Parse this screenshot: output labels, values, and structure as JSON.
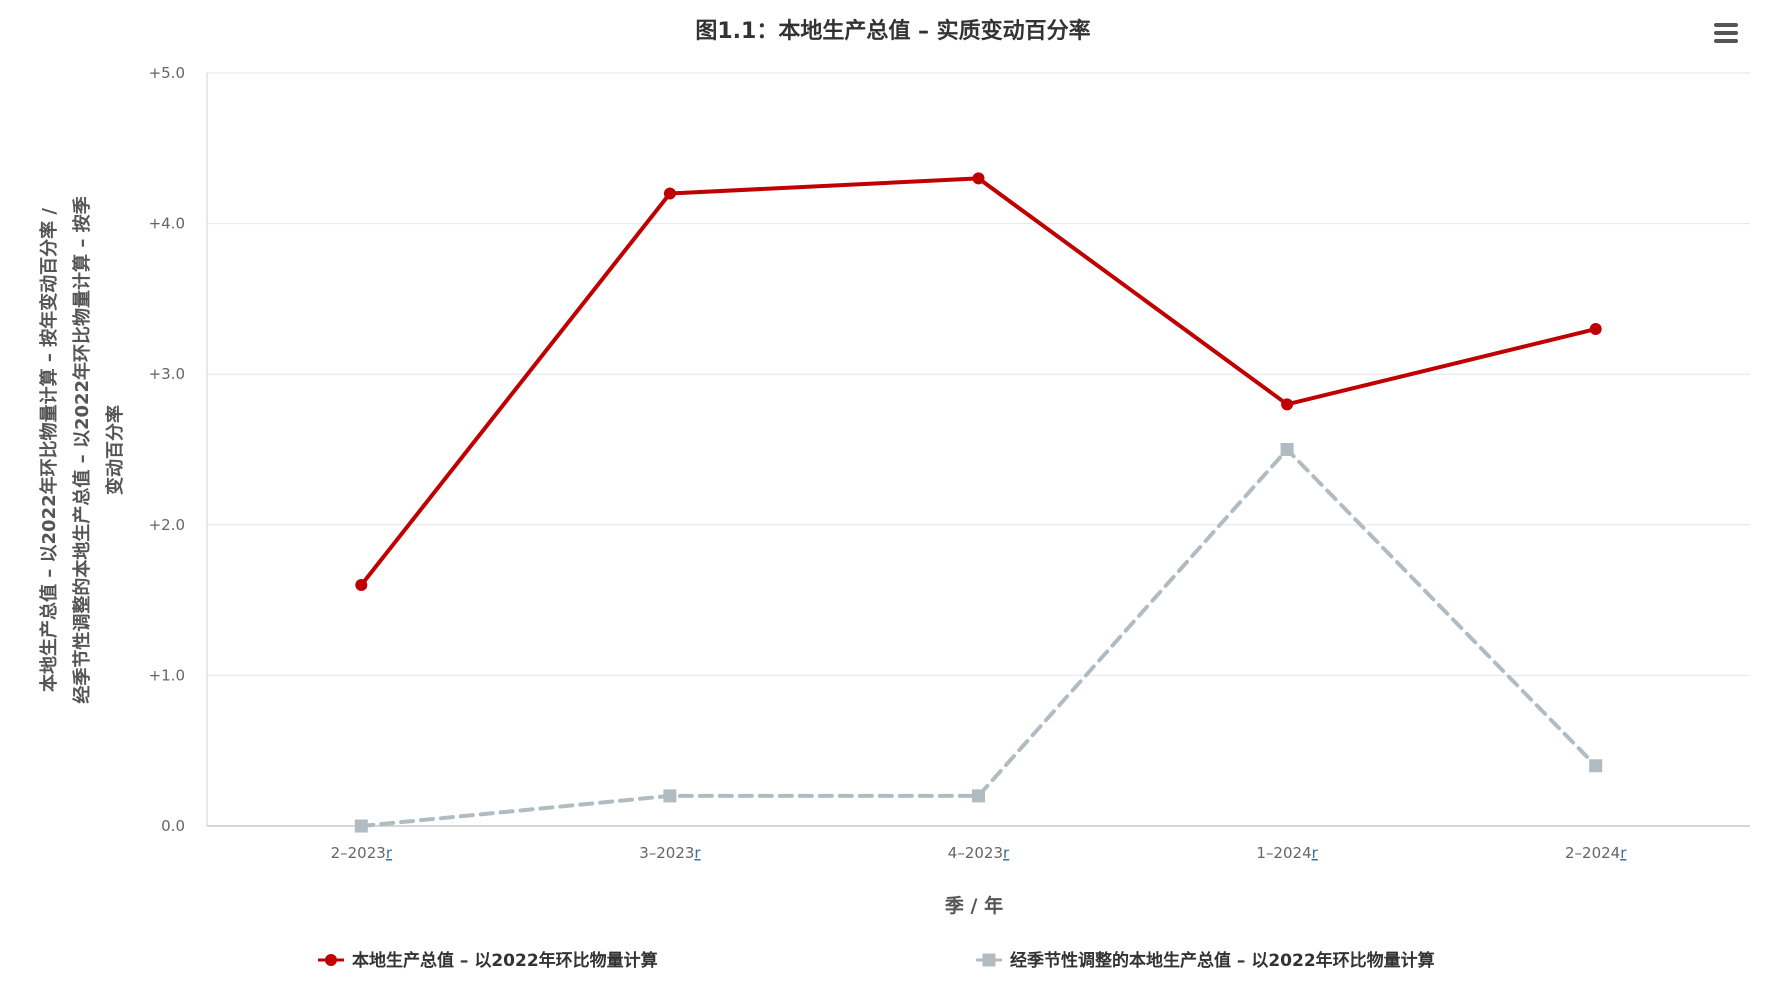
{
  "chart_data": {
    "type": "line",
    "title": "图1.1：本地生产总值 – 实质变动百分率",
    "xlabel": "季 / 年",
    "ylabel": "本地生产总值 – 以2022年环比物量计算 – 按年变动百分率 / 经季节性调整的本地生产总值 – 以2022年环比物量计算 – 按季变动百分率",
    "ylabel_lines": [
      "本地生产总值 – 以2022年环比物量计算 – 按年变动百分率 /",
      "经季节性调整的本地生产总值 – 以2022年环比物量计算 – 按季",
      "变动百分率"
    ],
    "categories": [
      "2–2023",
      "3–2023",
      "4–2023",
      "1–2024",
      "2–2024"
    ],
    "category_suffix": "r",
    "ylim": [
      0,
      5
    ],
    "yticks": [
      {
        "value": 0,
        "label": "0.0"
      },
      {
        "value": 1,
        "label": "+1.0"
      },
      {
        "value": 2,
        "label": "+2.0"
      },
      {
        "value": 3,
        "label": "+3.0"
      },
      {
        "value": 4,
        "label": "+4.0"
      },
      {
        "value": 5,
        "label": "+5.0"
      }
    ],
    "grid": true,
    "legend_position": "bottom",
    "series": [
      {
        "name": "本地生产总值 – 以2022年环比物量计算",
        "values": [
          1.6,
          4.2,
          4.3,
          2.8,
          3.3
        ],
        "color": "#c00000",
        "marker": "circle",
        "dash": "solid"
      },
      {
        "name": "经季节性调整的本地生产总值 – 以2022年环比物量计算",
        "values": [
          0.0,
          0.2,
          0.2,
          2.5,
          0.4
        ],
        "color": "#b0bcc2",
        "marker": "square",
        "dash": "dashed"
      }
    ]
  },
  "menu": {
    "icon": "hamburger-menu-icon"
  }
}
